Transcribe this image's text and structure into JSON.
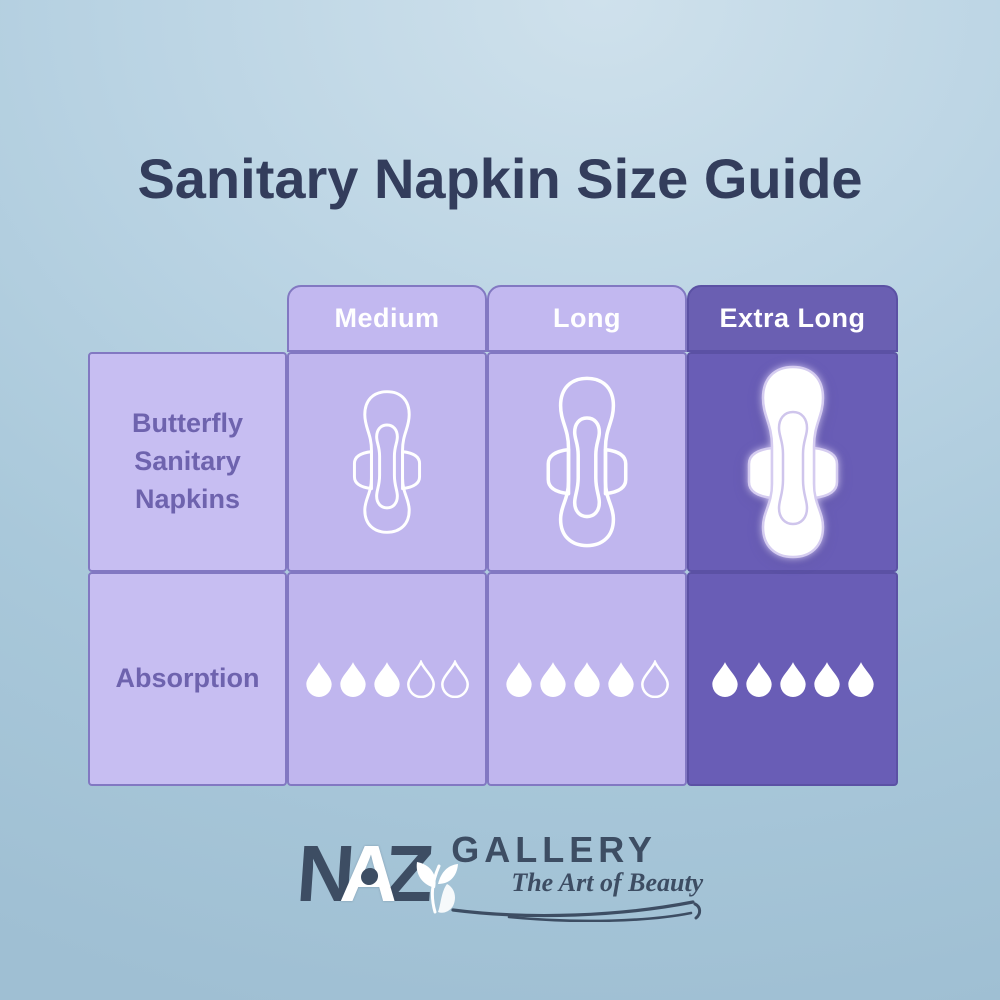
{
  "page": {
    "title": "Sanitary Napkin Size Guide"
  },
  "table": {
    "columns": [
      {
        "label": "Medium",
        "highlight": false
      },
      {
        "label": "Long",
        "highlight": false
      },
      {
        "label": "Extra Long",
        "highlight": true
      }
    ],
    "rows": [
      {
        "label": "Butterfly\nSanitary\nNapkins"
      },
      {
        "label": "Absorption"
      }
    ],
    "napkins": [
      {
        "column": "Medium",
        "size": "small",
        "style": "white-outline"
      },
      {
        "column": "Long",
        "size": "medium",
        "style": "white-outline"
      },
      {
        "column": "Extra Long",
        "size": "large",
        "style": "white-filled"
      }
    ],
    "absorption": [
      {
        "column": "Medium",
        "filled": 3,
        "total": 5
      },
      {
        "column": "Long",
        "filled": 4,
        "total": 5
      },
      {
        "column": "Extra Long",
        "filled": 5,
        "total": 5
      }
    ]
  },
  "logo": {
    "letters": [
      "N",
      "A",
      "Z"
    ],
    "name": "GALLERY",
    "tagline": "The Art of Beauty"
  },
  "colors": {
    "background_top": "#cfe1ec",
    "background_bottom": "#9fbfd3",
    "title_text": "#333d5c",
    "header_cell_light": "#c2b8f0",
    "header_cell_dark": "#6a5fb2",
    "body_cell_light": "#c0b6ee",
    "label_cell": "#c7bef2",
    "body_cell_dark": "#695db6",
    "border_light": "#8278c2",
    "border_dark": "#5b51a4",
    "row_label_text": "#6e63ae",
    "header_text": "#ffffff",
    "drop_color": "#ffffff",
    "logo_text": "#3d4d63"
  }
}
